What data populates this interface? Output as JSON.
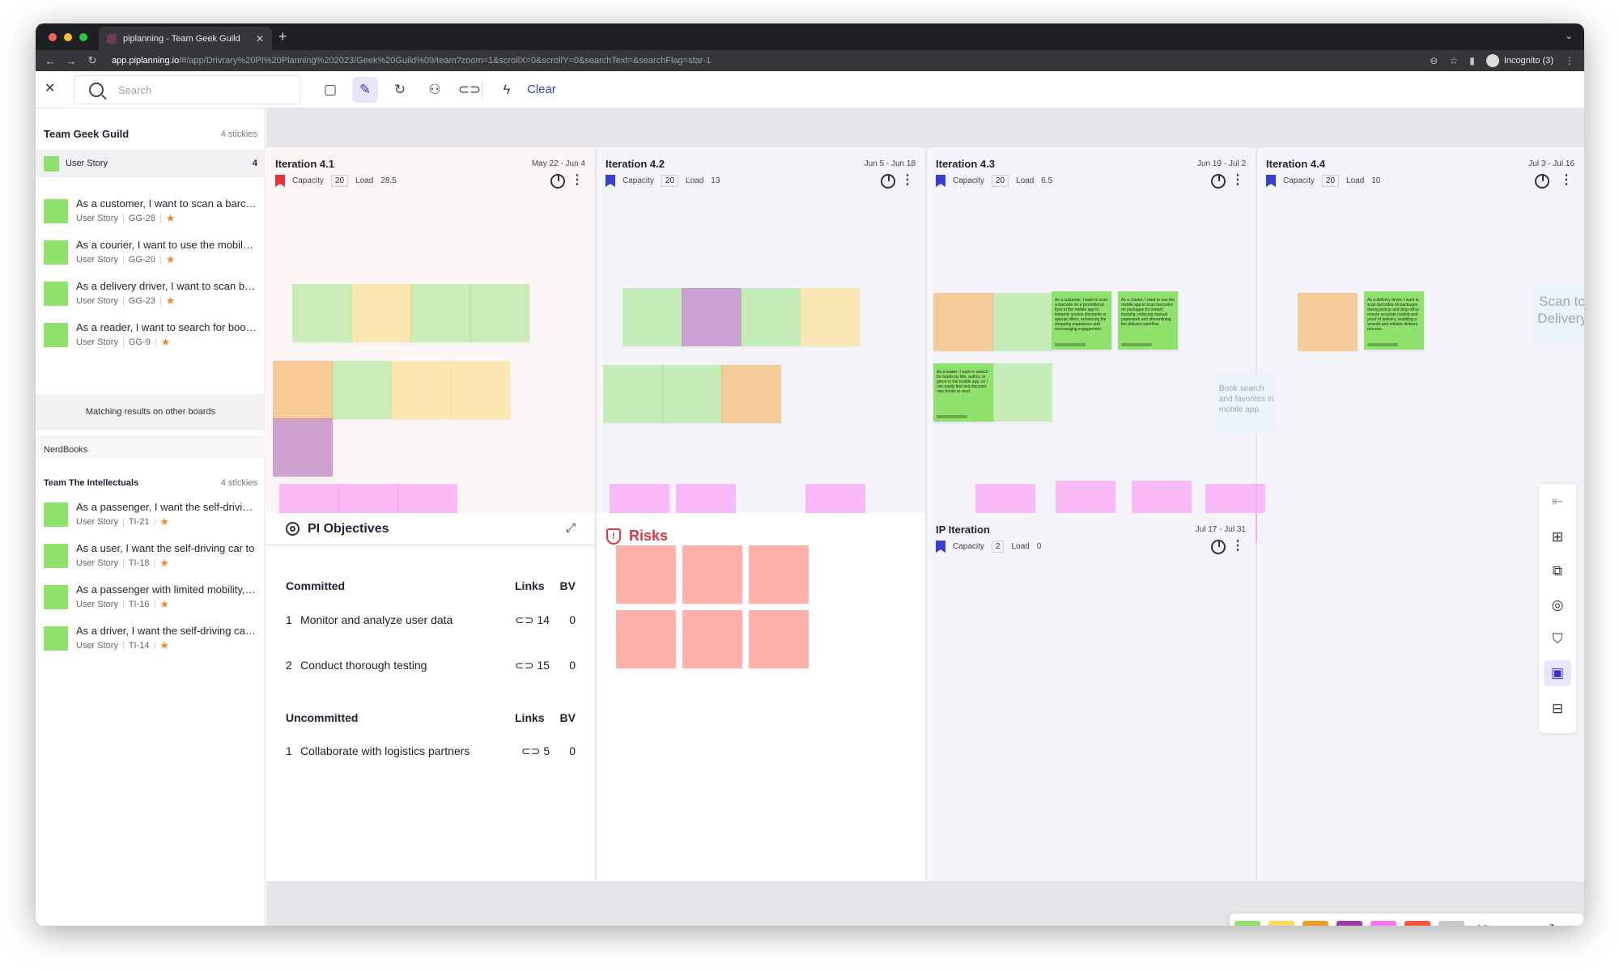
{
  "browser": {
    "tab_title": "piplanning - Team Geek Guild",
    "url_host": "app.piplanning.io",
    "url_path": "/#/app/Drivrary%20PI%20Planning%202023/Geek%20Guild%09/team?zoom=1&scrollX=0&scrollY=0&searchText=&searchFlag=star-1",
    "profile": "Incognito (3)",
    "dot_colors": [
      "#ff5f57",
      "#febc2e",
      "#28c840"
    ]
  },
  "toolbar": {
    "search_placeholder": "Search",
    "clear_label": "Clear"
  },
  "sidebar": {
    "team_title": "Team Geek Guild",
    "team_count": "4 stickies",
    "filter_label": "User Story",
    "filter_count": "4",
    "stories": [
      {
        "title": "As a customer, I want to scan a barcode on a promotional flyer",
        "type": "User Story",
        "id": "GG-28"
      },
      {
        "title": "As a courier, I want to use the mobile app to scan barcodes",
        "type": "User Story",
        "id": "GG-20"
      },
      {
        "title": "As a delivery driver, I want to scan barcodes on packages",
        "type": "User Story",
        "id": "GG-23"
      },
      {
        "title": "As a reader, I want to search for books by title, author, or genre",
        "type": "User Story",
        "id": "GG-9"
      }
    ],
    "matching_label": "Matching results on other boards",
    "other_board": "NerdBooks",
    "other_team_title": "Team The Intellectuals",
    "other_team_count": "4 stickies",
    "other_stories": [
      {
        "title": "As a passenger, I want the self-driving car to",
        "type": "User Story",
        "id": "TI-21"
      },
      {
        "title": "As a user, I want the self-driving car to",
        "type": "User Story",
        "id": "TI-18"
      },
      {
        "title": "As a passenger with limited mobility, I want",
        "type": "User Story",
        "id": "TI-16"
      },
      {
        "title": "As a driver, I want the self-driving car to",
        "type": "User Story",
        "id": "TI-14"
      }
    ]
  },
  "iterations": [
    {
      "title": "Iteration 4.1",
      "dates": "May 22 - Jun 4",
      "capacity_label": "Capacity",
      "capacity": "20",
      "load_label": "Load",
      "load": "28.5"
    },
    {
      "title": "Iteration 4.2",
      "dates": "Jun 5 - Jun 18",
      "capacity_label": "Capacity",
      "capacity": "20",
      "load_label": "Load",
      "load": "13"
    },
    {
      "title": "Iteration 4.3",
      "dates": "Jun 19 - Jul 2",
      "capacity_label": "Capacity",
      "capacity": "20",
      "load_label": "Load",
      "load": "6.5"
    },
    {
      "title": "Iteration 4.4",
      "dates": "Jul 3 - Jul 16",
      "capacity_label": "Capacity",
      "capacity": "20",
      "load_label": "Load",
      "load": "10"
    }
  ],
  "ip_iteration": {
    "title": "IP Iteration",
    "dates": "Jul 17 - Jul 31",
    "capacity_label": "Capacity",
    "capacity": "2",
    "load_label": "Load",
    "load": "0"
  },
  "highlighted_notes": {
    "n1": "As a customer, I want to scan a barcode on a promotional flyer in the mobile app to instantly access discounts or special offers, enhancing the shopping experience and encouraging engagement.",
    "n2": "As a courier, I want to use the mobile app to scan barcodes on packages for instant tracking, reducing manual paperwork and streamlining the delivery workflow.",
    "n3": "As a reader, I want to search for books by title, author, or genre in the mobile app, so I can easily find and discover new books to read.",
    "n4": "As a delivery driver, I want to scan barcodes on packages during pickup and drop-off to ensure accurate routing and proof of delivery, enabling a smooth and reliable delivery process."
  },
  "placeholders": {
    "scan": "Scan to Delivery",
    "book": "Book search and favorites in mobile app"
  },
  "objectives": {
    "title": "PI Objectives",
    "committed_label": "Committed",
    "uncommitted_label": "Uncommitted",
    "links_label": "Links",
    "bv_label": "BV",
    "committed": [
      {
        "index": "1",
        "text": "Monitor and analyze user data",
        "links": "14",
        "bv": "0"
      },
      {
        "index": "2",
        "text": "Conduct thorough testing",
        "links": "15",
        "bv": "0"
      }
    ],
    "uncommitted": [
      {
        "index": "1",
        "text": "Collaborate with logistics partners",
        "links": "5",
        "bv": "0"
      }
    ]
  },
  "risks": {
    "title": "Risks"
  },
  "colors": {
    "green": "#8fe36c",
    "yellow": "#fdd75e",
    "orange": "#f59a24",
    "purple": "#9b3fa4",
    "pink": "#fd73f3",
    "red": "#fd5542",
    "gray": "#c8c8c8",
    "accent": "#3b2fd0"
  }
}
